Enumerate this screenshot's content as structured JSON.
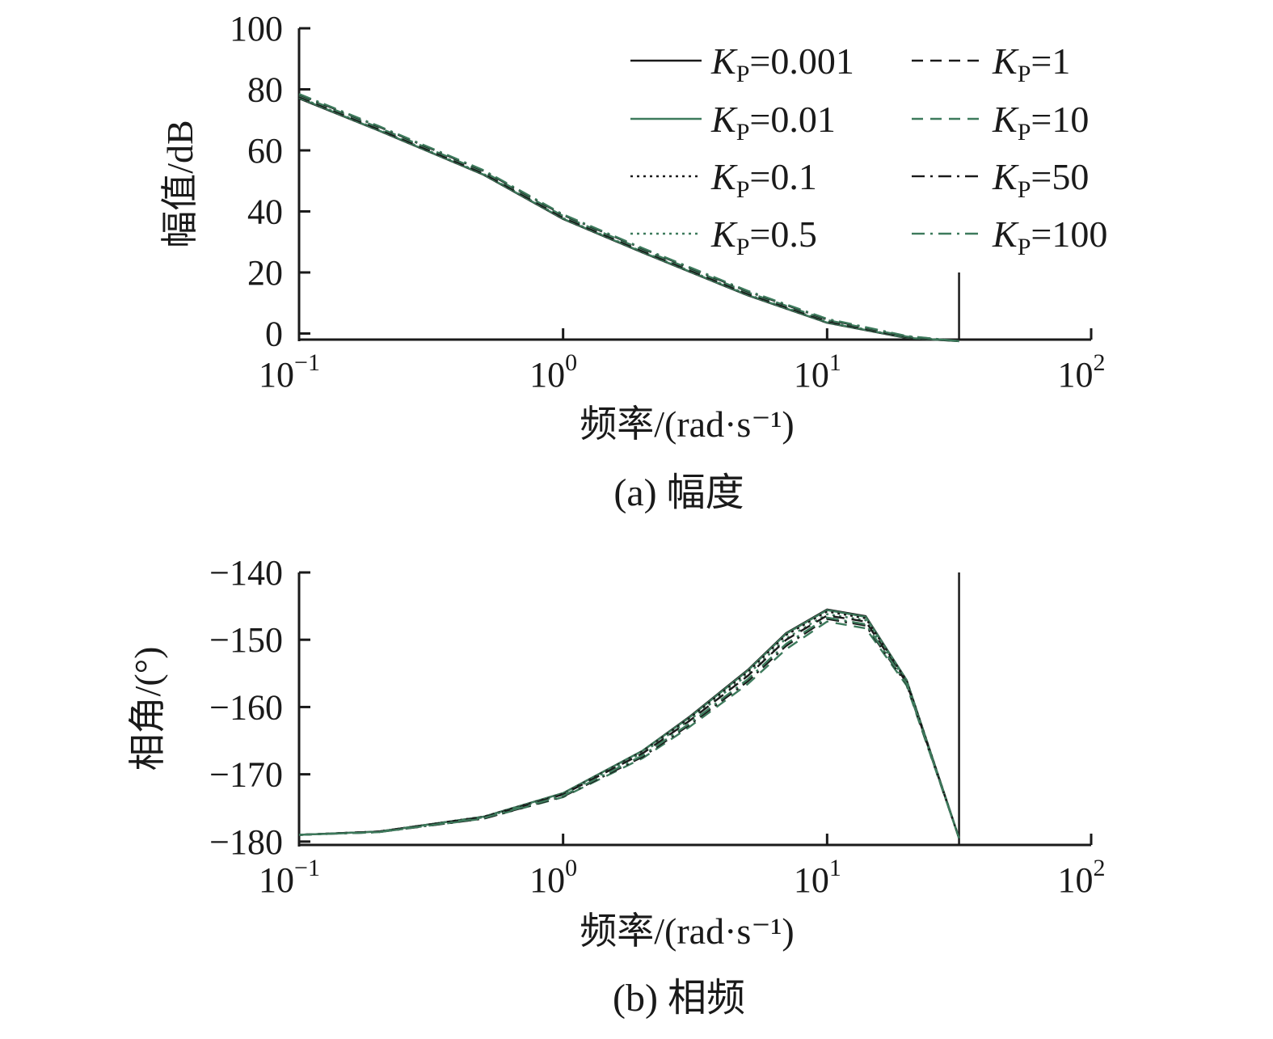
{
  "chart_data": [
    {
      "type": "line",
      "caption": "(a) 幅度",
      "xlabel": "频率/(rad·s⁻¹)",
      "ylabel": "幅值/dB",
      "xscale": "log",
      "xlim": [
        0.1,
        100
      ],
      "ylim": [
        -2,
        100
      ],
      "xticks": [
        {
          "base": "10",
          "exp": "−1"
        },
        {
          "base": "10",
          "exp": "0"
        },
        {
          "base": "10",
          "exp": "1"
        },
        {
          "base": "10",
          "exp": "2"
        }
      ],
      "yticks": [
        "0",
        "20",
        "40",
        "60",
        "80",
        "100"
      ],
      "ytick_values": [
        0,
        20,
        40,
        60,
        80,
        100
      ],
      "grid": false,
      "legend_position": "top-right",
      "marker_line": {
        "x": 31.6,
        "y_top": 20
      },
      "x": [
        0.1,
        0.2,
        0.5,
        1,
        2,
        5,
        10,
        20,
        31.6
      ],
      "series": [
        {
          "name": "0.001",
          "color": "#1a1a1a",
          "dash": "solid",
          "values": [
            77,
            66.5,
            52,
            37.5,
            26.5,
            12.5,
            3.5,
            -1.5,
            -2.5
          ]
        },
        {
          "name": "0.01",
          "color": "#3d7a5c",
          "dash": "solid",
          "values": [
            77.2,
            66.6,
            52.1,
            37.6,
            26.6,
            12.6,
            3.6,
            -1.4,
            -2.5
          ]
        },
        {
          "name": "0.1",
          "color": "#1a1a1a",
          "dash": "dotted",
          "values": [
            77.3,
            66.7,
            52.2,
            37.7,
            26.7,
            12.7,
            3.7,
            -1.4,
            -2.5
          ]
        },
        {
          "name": "0.5",
          "color": "#3d7a5c",
          "dash": "dotted",
          "values": [
            77.4,
            66.8,
            52.3,
            37.8,
            26.8,
            12.8,
            3.8,
            -1.3,
            -2.5
          ]
        },
        {
          "name": "1",
          "color": "#1a1a1a",
          "dash": "dashed",
          "values": [
            77.6,
            67,
            52.5,
            38,
            27,
            13,
            4,
            -1.2,
            -2.5
          ]
        },
        {
          "name": "10",
          "color": "#3d7a5c",
          "dash": "dashed",
          "values": [
            78,
            67.5,
            53,
            38.5,
            27.5,
            13.5,
            4.4,
            -1,
            -2.5
          ]
        },
        {
          "name": "50",
          "color": "#1a1a1a",
          "dash": "dashdot",
          "values": [
            78.3,
            67.8,
            53.3,
            38.8,
            27.8,
            13.8,
            4.6,
            -0.9,
            -2.5
          ]
        },
        {
          "name": "100",
          "color": "#3d7a5c",
          "dash": "dashdot",
          "values": [
            78.5,
            68,
            53.5,
            39,
            28,
            14,
            4.8,
            -0.8,
            -2.5
          ]
        }
      ]
    },
    {
      "type": "line",
      "caption": "(b) 相频",
      "xlabel": "频率/(rad·s⁻¹)",
      "ylabel": "相角/(°)",
      "xscale": "log",
      "xlim": [
        0.1,
        100
      ],
      "ylim": [
        -180.5,
        -140
      ],
      "xticks": [
        {
          "base": "10",
          "exp": "−1"
        },
        {
          "base": "10",
          "exp": "0"
        },
        {
          "base": "10",
          "exp": "1"
        },
        {
          "base": "10",
          "exp": "2"
        }
      ],
      "yticks": [
        "−140",
        "−150",
        "−160",
        "−170",
        "−180"
      ],
      "ytick_values": [
        -140,
        -150,
        -160,
        -170,
        -180
      ],
      "grid": false,
      "marker_line": {
        "x": 31.6,
        "y_top": -140
      },
      "x": [
        0.1,
        0.2,
        0.5,
        1,
        2,
        3,
        5,
        7,
        10,
        14,
        20,
        31.6
      ],
      "series": [
        {
          "name": "0.001",
          "color": "#1a1a1a",
          "dash": "solid",
          "values": [
            -179,
            -178.5,
            -176.3,
            -172.8,
            -166.5,
            -161.5,
            -154.5,
            -149,
            -145.5,
            -146.5,
            -156,
            -179.5
          ]
        },
        {
          "name": "0.01",
          "color": "#3d7a5c",
          "dash": "solid",
          "values": [
            -179,
            -178.5,
            -176.3,
            -172.8,
            -166.5,
            -161.6,
            -154.6,
            -149.1,
            -145.6,
            -146.6,
            -156,
            -179.5
          ]
        },
        {
          "name": "0.1",
          "color": "#1a1a1a",
          "dash": "dotted",
          "values": [
            -179,
            -178.5,
            -176.3,
            -172.9,
            -166.6,
            -161.7,
            -154.8,
            -149.3,
            -145.8,
            -146.8,
            -156.1,
            -179.5
          ]
        },
        {
          "name": "0.5",
          "color": "#3d7a5c",
          "dash": "dotted",
          "values": [
            -179,
            -178.5,
            -176.4,
            -173,
            -166.8,
            -162,
            -155.2,
            -149.8,
            -146.2,
            -147.1,
            -156.3,
            -179.5
          ]
        },
        {
          "name": "1",
          "color": "#1a1a1a",
          "dash": "dashed",
          "values": [
            -179,
            -178.5,
            -176.4,
            -173,
            -166.9,
            -162.1,
            -155.4,
            -150,
            -146.4,
            -147.3,
            -156.4,
            -179.5
          ]
        },
        {
          "name": "10",
          "color": "#3d7a5c",
          "dash": "dashed",
          "values": [
            -179,
            -178.6,
            -176.6,
            -173.4,
            -167.6,
            -163,
            -156.6,
            -151.4,
            -147.3,
            -148.3,
            -156.8,
            -179.5
          ]
        },
        {
          "name": "50",
          "color": "#1a1a1a",
          "dash": "dashdot",
          "values": [
            -179,
            -178.6,
            -176.6,
            -173.3,
            -167.4,
            -162.7,
            -156.2,
            -150.9,
            -146.9,
            -147.9,
            -156.6,
            -179.5
          ]
        },
        {
          "name": "100",
          "color": "#3d7a5c",
          "dash": "dashdot",
          "values": [
            -179,
            -178.6,
            -176.5,
            -173.2,
            -167.2,
            -162.5,
            -155.9,
            -150.6,
            -146.7,
            -147.7,
            -156.5,
            -179.5
          ]
        }
      ]
    }
  ],
  "legend": {
    "symbol": "K",
    "subscript": "P",
    "entries": [
      "0.001",
      "1",
      "0.01",
      "10",
      "0.1",
      "50",
      "0.5",
      "100"
    ]
  }
}
